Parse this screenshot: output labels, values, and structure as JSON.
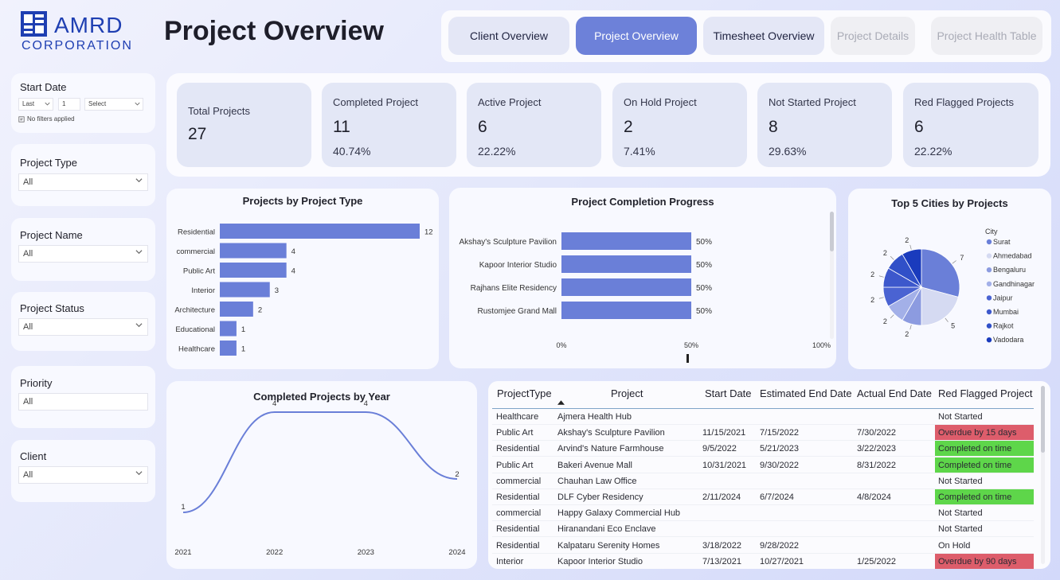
{
  "brand": {
    "line1": "AMRD",
    "line2": "CORPORATION",
    "color": "#1f3fb2"
  },
  "page_title": "Project Overview",
  "nav": [
    {
      "label": "Client Overview",
      "state": "normal"
    },
    {
      "label": "Project Overview",
      "state": "active"
    },
    {
      "label": "Timesheet Overview",
      "state": "normal"
    },
    {
      "label": "Project Details",
      "state": "disabled"
    },
    {
      "label": "Project Health Table",
      "state": "disabled"
    }
  ],
  "filters": {
    "start_date": {
      "label": "Start Date",
      "period": "Last",
      "count": "1",
      "unit": "Select",
      "status": "No filters applied"
    },
    "project_type": {
      "label": "Project Type",
      "value": "All"
    },
    "project_name": {
      "label": "Project Name",
      "value": "All"
    },
    "project_status": {
      "label": "Project Status",
      "value": "All"
    },
    "priority": {
      "label": "Priority",
      "value": "All"
    },
    "client": {
      "label": "Client",
      "value": "All"
    }
  },
  "kpis": [
    {
      "title": "Total Projects",
      "value": "27",
      "pct": ""
    },
    {
      "title": "Completed Project",
      "value": "11",
      "pct": "40.74%"
    },
    {
      "title": "Active Project",
      "value": "6",
      "pct": "22.22%"
    },
    {
      "title": "On Hold Project",
      "value": "2",
      "pct": "7.41%"
    },
    {
      "title": "Not Started Project",
      "value": "8",
      "pct": "29.63%"
    },
    {
      "title": "Red Flagged Projects",
      "value": "6",
      "pct": "22.22%"
    }
  ],
  "colors": {
    "accent": "#6d81d9",
    "bar": "#6a7fd8",
    "red_flag": "#dd5d6b",
    "green_flag": "#5ed64a"
  },
  "chart_data": [
    {
      "type": "bar",
      "orientation": "horizontal",
      "title": "Projects by Project Type",
      "categories": [
        "Residential",
        "commercial",
        "Public Art",
        "Interior",
        "Architecture",
        "Educational",
        "Healthcare"
      ],
      "values": [
        12,
        4,
        4,
        3,
        2,
        1,
        1
      ]
    },
    {
      "type": "bar",
      "orientation": "horizontal",
      "title": "Project Completion Progress",
      "categories": [
        "Akshay's Sculpture Pavilion",
        "Kapoor Interior Studio",
        "Rajhans Elite Residency",
        "Rustomjee Grand Mall"
      ],
      "values": [
        50,
        50,
        50,
        50
      ],
      "value_suffix": "%",
      "xlim": [
        0,
        100
      ],
      "xticks": [
        "0%",
        "50%",
        "100%"
      ]
    },
    {
      "type": "pie",
      "title": "Top 5 Cities by Projects",
      "legend_title": "City",
      "legend_position": "right",
      "labels": [
        "Surat",
        "Ahmedabad",
        "Bengaluru",
        "Gandhinagar",
        "Jaipur",
        "Mumbai",
        "Rajkot",
        "Vadodara"
      ],
      "values": [
        7,
        5,
        2,
        2,
        2,
        2,
        2,
        2
      ],
      "colors": [
        "#6a7fd8",
        "#d5daf2",
        "#8c9be0",
        "#a3b0e8",
        "#4a63d2",
        "#3d58cc",
        "#3050c8",
        "#1a3bbd"
      ]
    },
    {
      "type": "line",
      "title": "Completed Projects by Year",
      "x": [
        "2021",
        "2022",
        "2023",
        "2024"
      ],
      "values": [
        1,
        4,
        4,
        2
      ]
    }
  ],
  "table": {
    "columns": [
      "ProjectType",
      "Project",
      "Start Date",
      "Estimated End Date",
      "Actual End Date",
      "Red Flagged Project"
    ],
    "rows": [
      {
        "type": "Healthcare",
        "project": "Ajmera Health Hub",
        "start": "",
        "est_end": "",
        "actual_end": "",
        "flag": "Not Started",
        "flag_style": "none"
      },
      {
        "type": "Public Art",
        "project": "Akshay's Sculpture Pavilion",
        "start": "11/15/2021",
        "est_end": "7/15/2022",
        "actual_end": "7/30/2022",
        "flag": "Overdue by 15 days",
        "flag_style": "red"
      },
      {
        "type": "Residential",
        "project": "Arvind's Nature Farmhouse",
        "start": "9/5/2022",
        "est_end": "5/21/2023",
        "actual_end": "3/22/2023",
        "flag": "Completed on time",
        "flag_style": "green"
      },
      {
        "type": "Public Art",
        "project": "Bakeri Avenue Mall",
        "start": "10/31/2021",
        "est_end": "9/30/2022",
        "actual_end": "8/31/2022",
        "flag": "Completed on time",
        "flag_style": "green"
      },
      {
        "type": "commercial",
        "project": "Chauhan Law Office",
        "start": "",
        "est_end": "",
        "actual_end": "",
        "flag": "Not Started",
        "flag_style": "none"
      },
      {
        "type": "Residential",
        "project": "DLF Cyber Residency",
        "start": "2/11/2024",
        "est_end": "6/7/2024",
        "actual_end": "4/8/2024",
        "flag": "Completed on time",
        "flag_style": "green"
      },
      {
        "type": "commercial",
        "project": "Happy Galaxy Commercial Hub",
        "start": "",
        "est_end": "",
        "actual_end": "",
        "flag": "Not Started",
        "flag_style": "none"
      },
      {
        "type": "Residential",
        "project": "Hiranandani Eco Enclave",
        "start": "",
        "est_end": "",
        "actual_end": "",
        "flag": "Not Started",
        "flag_style": "none"
      },
      {
        "type": "Residential",
        "project": "Kalpataru Serenity Homes",
        "start": "3/18/2022",
        "est_end": "9/28/2022",
        "actual_end": "",
        "flag": "On Hold",
        "flag_style": "none"
      },
      {
        "type": "Interior",
        "project": "Kapoor Interior Studio",
        "start": "7/13/2021",
        "est_end": "10/27/2021",
        "actual_end": "1/25/2022",
        "flag": "Overdue by 90 days",
        "flag_style": "red"
      }
    ]
  }
}
